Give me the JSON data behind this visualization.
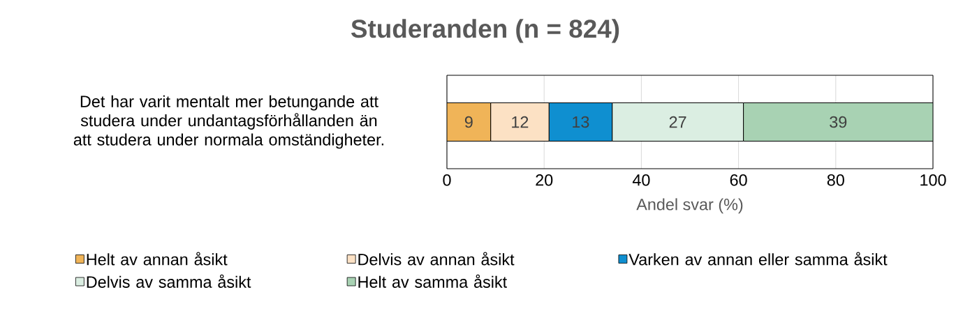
{
  "chart_data": {
    "type": "bar",
    "orientation": "horizontal",
    "stacked": true,
    "title": "Studeranden (n = 824)",
    "xlabel": "Andel svar (%)",
    "categories": [
      "Det har varit mentalt mer betungande att studera under undantagsförhållanden än att studera under normala omständigheter."
    ],
    "series": [
      {
        "name": "Helt av annan åsikt",
        "color": "#f0b458",
        "values": [
          9
        ]
      },
      {
        "name": "Delvis av annan åsikt",
        "color": "#fce1c4",
        "values": [
          12
        ]
      },
      {
        "name": "Varken av annan eller samma åsikt",
        "color": "#0f8fd0",
        "values": [
          13
        ]
      },
      {
        "name": "Delvis av samma åsikt",
        "color": "#dbeee2",
        "values": [
          27
        ]
      },
      {
        "name": "Helt av samma åsikt",
        "color": "#a8d2b3",
        "values": [
          39
        ]
      }
    ],
    "xlim": [
      0,
      100
    ],
    "xticks": [
      0,
      20,
      40,
      60,
      80,
      100
    ],
    "grid": "x",
    "legend": "bottom",
    "data_labels": true
  }
}
